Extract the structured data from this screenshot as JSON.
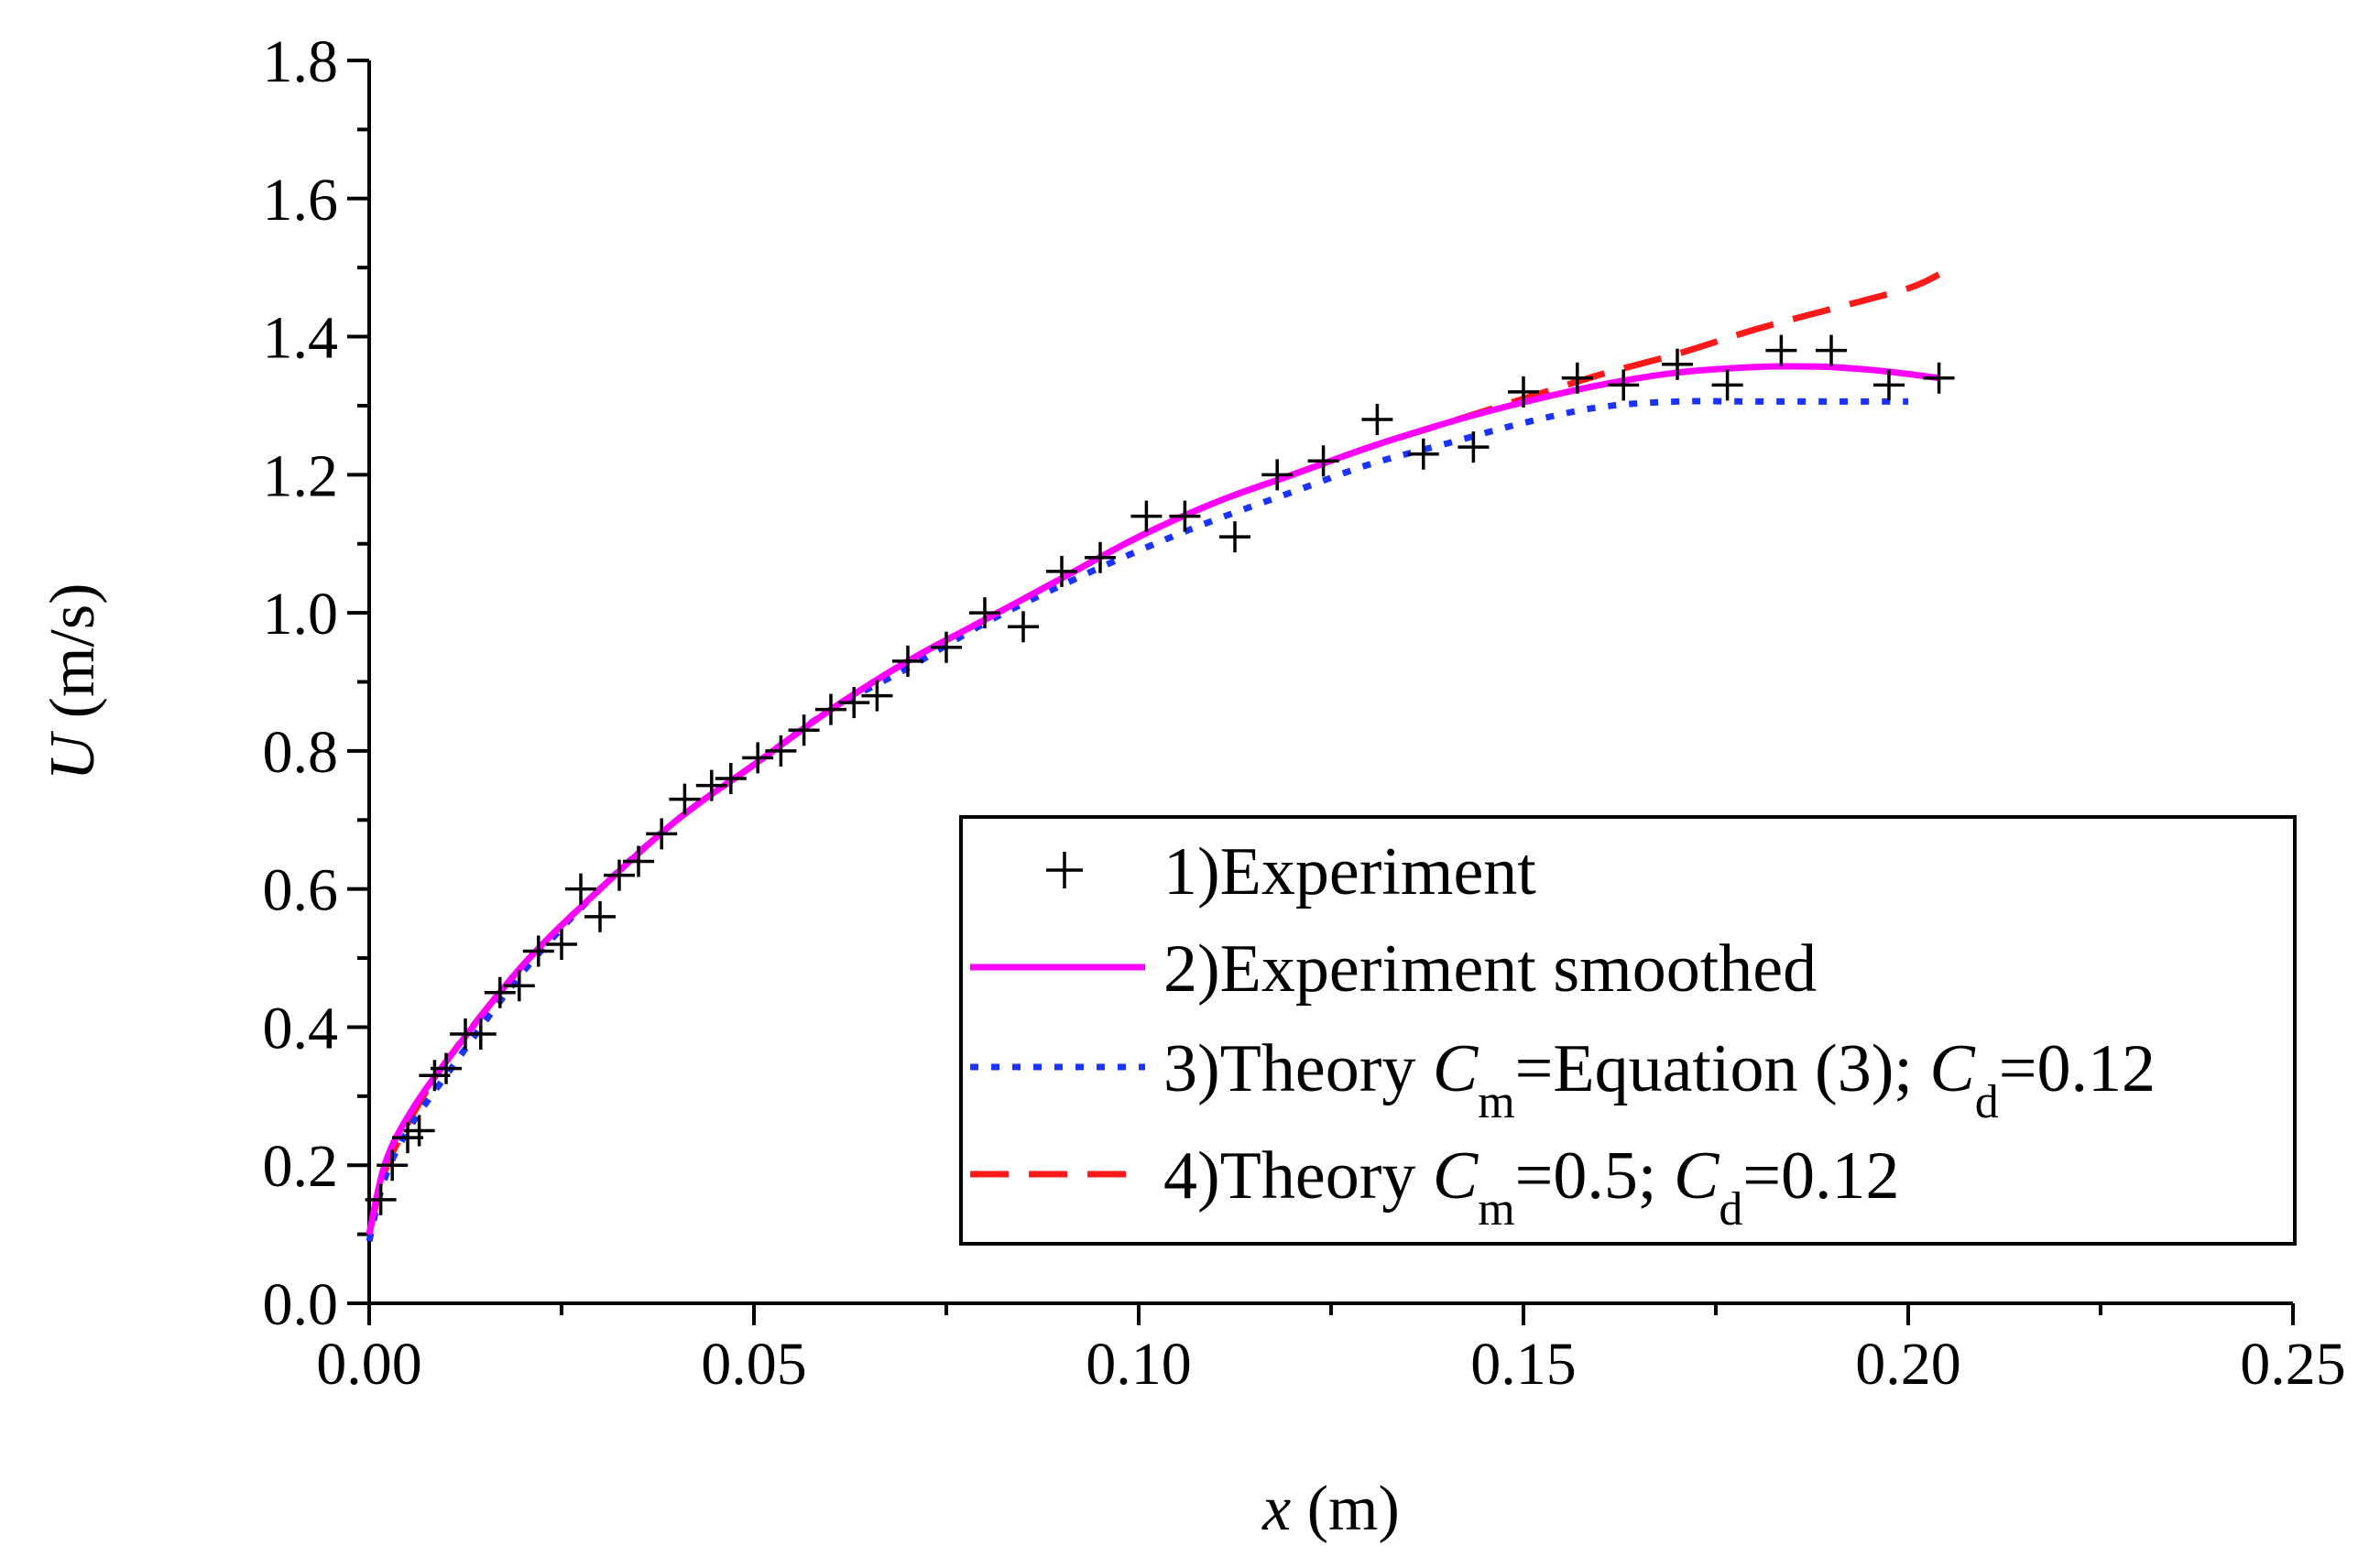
{
  "chart_data": {
    "type": "line",
    "title": "",
    "xlabel": {
      "var": "x",
      "unit": " (m)"
    },
    "ylabel": {
      "var": "U",
      "unit": " (m/s)"
    },
    "xlim": [
      0,
      0.25
    ],
    "ylim": [
      0,
      1.8
    ],
    "grid": false,
    "legend_position": "bottom-right",
    "x_ticks": [
      {
        "value": 0.0,
        "label": "0.00"
      },
      {
        "value": 0.05,
        "label": "0.05"
      },
      {
        "value": 0.1,
        "label": "0.10"
      },
      {
        "value": 0.15,
        "label": "0.15"
      },
      {
        "value": 0.2,
        "label": "0.20"
      },
      {
        "value": 0.25,
        "label": "0.25"
      }
    ],
    "y_ticks": [
      {
        "value": 0.0,
        "label": "0.0"
      },
      {
        "value": 0.2,
        "label": "0.2"
      },
      {
        "value": 0.4,
        "label": "0.4"
      },
      {
        "value": 0.6,
        "label": "0.6"
      },
      {
        "value": 0.8,
        "label": "0.8"
      },
      {
        "value": 1.0,
        "label": "1.0"
      },
      {
        "value": 1.2,
        "label": "1.2"
      },
      {
        "value": 1.4,
        "label": "1.4"
      },
      {
        "value": 1.6,
        "label": "1.6"
      },
      {
        "value": 1.8,
        "label": "1.8"
      }
    ],
    "series": [
      {
        "name": "1)Experiment",
        "legend": [
          {
            "t": "1)Experiment"
          }
        ],
        "style": "marker-plus",
        "color": "#000000",
        "x": [
          0.0015,
          0.003,
          0.005,
          0.0065,
          0.0085,
          0.01,
          0.0125,
          0.0145,
          0.017,
          0.0195,
          0.022,
          0.025,
          0.0275,
          0.03,
          0.0325,
          0.035,
          0.038,
          0.041,
          0.0445,
          0.047,
          0.0505,
          0.0535,
          0.0565,
          0.06,
          0.063,
          0.066,
          0.07,
          0.075,
          0.08,
          0.085,
          0.09,
          0.095,
          0.101,
          0.106,
          0.1125,
          0.118,
          0.124,
          0.131,
          0.137,
          0.1435,
          0.15,
          0.157,
          0.163,
          0.17,
          0.1765,
          0.1835,
          0.19,
          0.1975,
          0.204
        ],
        "y": [
          0.15,
          0.2,
          0.24,
          0.25,
          0.33,
          0.34,
          0.39,
          0.39,
          0.45,
          0.46,
          0.51,
          0.52,
          0.6,
          0.56,
          0.62,
          0.64,
          0.68,
          0.73,
          0.75,
          0.76,
          0.79,
          0.8,
          0.83,
          0.86,
          0.87,
          0.88,
          0.93,
          0.95,
          1.0,
          0.98,
          1.06,
          1.08,
          1.14,
          1.14,
          1.11,
          1.2,
          1.22,
          1.28,
          1.23,
          1.24,
          1.32,
          1.34,
          1.33,
          1.36,
          1.33,
          1.38,
          1.38,
          1.33,
          1.34
        ]
      },
      {
        "name": "2)Experiment smoothed",
        "legend": [
          {
            "t": "2)Experiment smoothed"
          }
        ],
        "style": "solid",
        "color": "#ff00ff",
        "x": [
          0.0,
          0.002,
          0.005,
          0.01,
          0.02,
          0.03,
          0.04,
          0.05,
          0.06,
          0.07,
          0.08,
          0.09,
          0.1,
          0.11,
          0.12,
          0.13,
          0.14,
          0.15,
          0.16,
          0.17,
          0.18,
          0.185,
          0.19,
          0.195,
          0.2,
          0.204
        ],
        "y": [
          0.1,
          0.2,
          0.27,
          0.35,
          0.49,
          0.6,
          0.7,
          0.78,
          0.86,
          0.93,
          0.99,
          1.05,
          1.11,
          1.16,
          1.2,
          1.24,
          1.275,
          1.305,
          1.33,
          1.348,
          1.356,
          1.357,
          1.356,
          1.352,
          1.346,
          1.34
        ]
      },
      {
        "name": "3)Theory Cm=Equation (3); Cd=0.12",
        "legend": [
          {
            "t": "3)Theory "
          },
          {
            "t": "C",
            "i": true
          },
          {
            "t": "m",
            "sub": true
          },
          {
            "t": "=Equation (3); "
          },
          {
            "t": "C",
            "i": true
          },
          {
            "t": "d",
            "sub": true
          },
          {
            "t": "=0.12"
          }
        ],
        "style": "dot",
        "color": "#1a33ff",
        "x": [
          0.0,
          0.002,
          0.005,
          0.01,
          0.02,
          0.03,
          0.04,
          0.05,
          0.06,
          0.07,
          0.08,
          0.09,
          0.1,
          0.11,
          0.12,
          0.13,
          0.14,
          0.15,
          0.16,
          0.17,
          0.18,
          0.19,
          0.2
        ],
        "y": [
          0.09,
          0.18,
          0.25,
          0.33,
          0.48,
          0.6,
          0.7,
          0.78,
          0.86,
          0.92,
          0.985,
          1.04,
          1.09,
          1.135,
          1.175,
          1.215,
          1.245,
          1.275,
          1.298,
          1.306,
          1.306,
          1.306,
          1.306
        ]
      },
      {
        "name": "4)Theory Cm=0.5; Cd=0.12",
        "legend": [
          {
            "t": "4)Theory "
          },
          {
            "t": "C",
            "i": true
          },
          {
            "t": "m",
            "sub": true
          },
          {
            "t": "=0.5; "
          },
          {
            "t": "C",
            "i": true
          },
          {
            "t": "d",
            "sub": true
          },
          {
            "t": "=0.12"
          }
        ],
        "style": "dash",
        "color": "#ff1a1a",
        "x": [
          0.0,
          0.002,
          0.005,
          0.01,
          0.02,
          0.03,
          0.04,
          0.05,
          0.06,
          0.07,
          0.08,
          0.09,
          0.1,
          0.11,
          0.12,
          0.13,
          0.14,
          0.15,
          0.16,
          0.17,
          0.18,
          0.19,
          0.2,
          0.204
        ],
        "y": [
          0.1,
          0.19,
          0.26,
          0.35,
          0.49,
          0.6,
          0.7,
          0.78,
          0.86,
          0.93,
          0.99,
          1.05,
          1.11,
          1.16,
          1.2,
          1.24,
          1.275,
          1.31,
          1.345,
          1.375,
          1.41,
          1.44,
          1.47,
          1.49
        ]
      }
    ]
  }
}
